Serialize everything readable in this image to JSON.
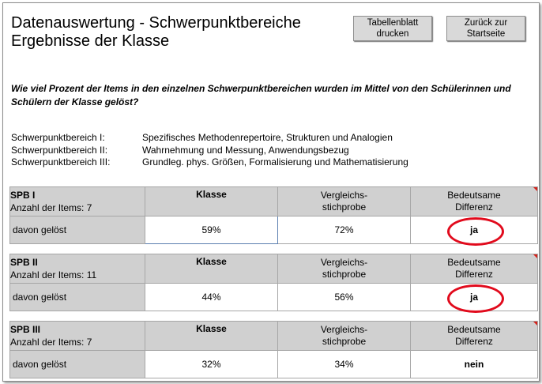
{
  "page": {
    "title_line1": "Datenauswertung - Schwerpunktbereiche",
    "title_line2": "Ergebnisse der Klasse",
    "buttons": {
      "print_line1": "Tabellenblatt",
      "print_line2": "drucken",
      "home_line1": "Zurück zur",
      "home_line2": "Startseite"
    },
    "question": "Wie viel Prozent der Items in den einzelnen Schwerpunktbereichen wurden im Mittel von den Schülerinnen und Schülern der Klasse gelöst?"
  },
  "areas": [
    {
      "key": "Schwerpunktbereich I:",
      "desc": "Spezifisches Methodenrepertoire, Strukturen und Analogien"
    },
    {
      "key": "Schwerpunktbereich II:",
      "desc": "Wahrnehmung und Messung, Anwendungsbezug"
    },
    {
      "key": "Schwerpunktbereich III:",
      "desc": "Grundleg. phys. Größen, Formalisierung und Mathematisierung"
    }
  ],
  "headers": {
    "klasse": "Klasse",
    "vergleich_line1": "Vergleichs-",
    "vergleich_line2": "stichprobe",
    "differenz_line1": "Bedeutsame",
    "differenz_line2": "Differenz",
    "row_label": "davon gelöst"
  },
  "tables": [
    {
      "name": "SPB I",
      "items": "Anzahl der Items: 7",
      "klasse": "59%",
      "vergleich": "72%",
      "differenz": "ja",
      "highlighted": true
    },
    {
      "name": "SPB II",
      "items": "Anzahl der Items: 11",
      "klasse": "44%",
      "vergleich": "56%",
      "differenz": "ja",
      "highlighted": true
    },
    {
      "name": "SPB III",
      "items": "Anzahl der Items: 7",
      "klasse": "32%",
      "vergleich": "34%",
      "differenz": "nein",
      "highlighted": false
    }
  ],
  "colors": {
    "header_gray": "#d0d0d0",
    "highlight_ring": "#e10a1c",
    "selection_border": "#5b7fb0"
  }
}
